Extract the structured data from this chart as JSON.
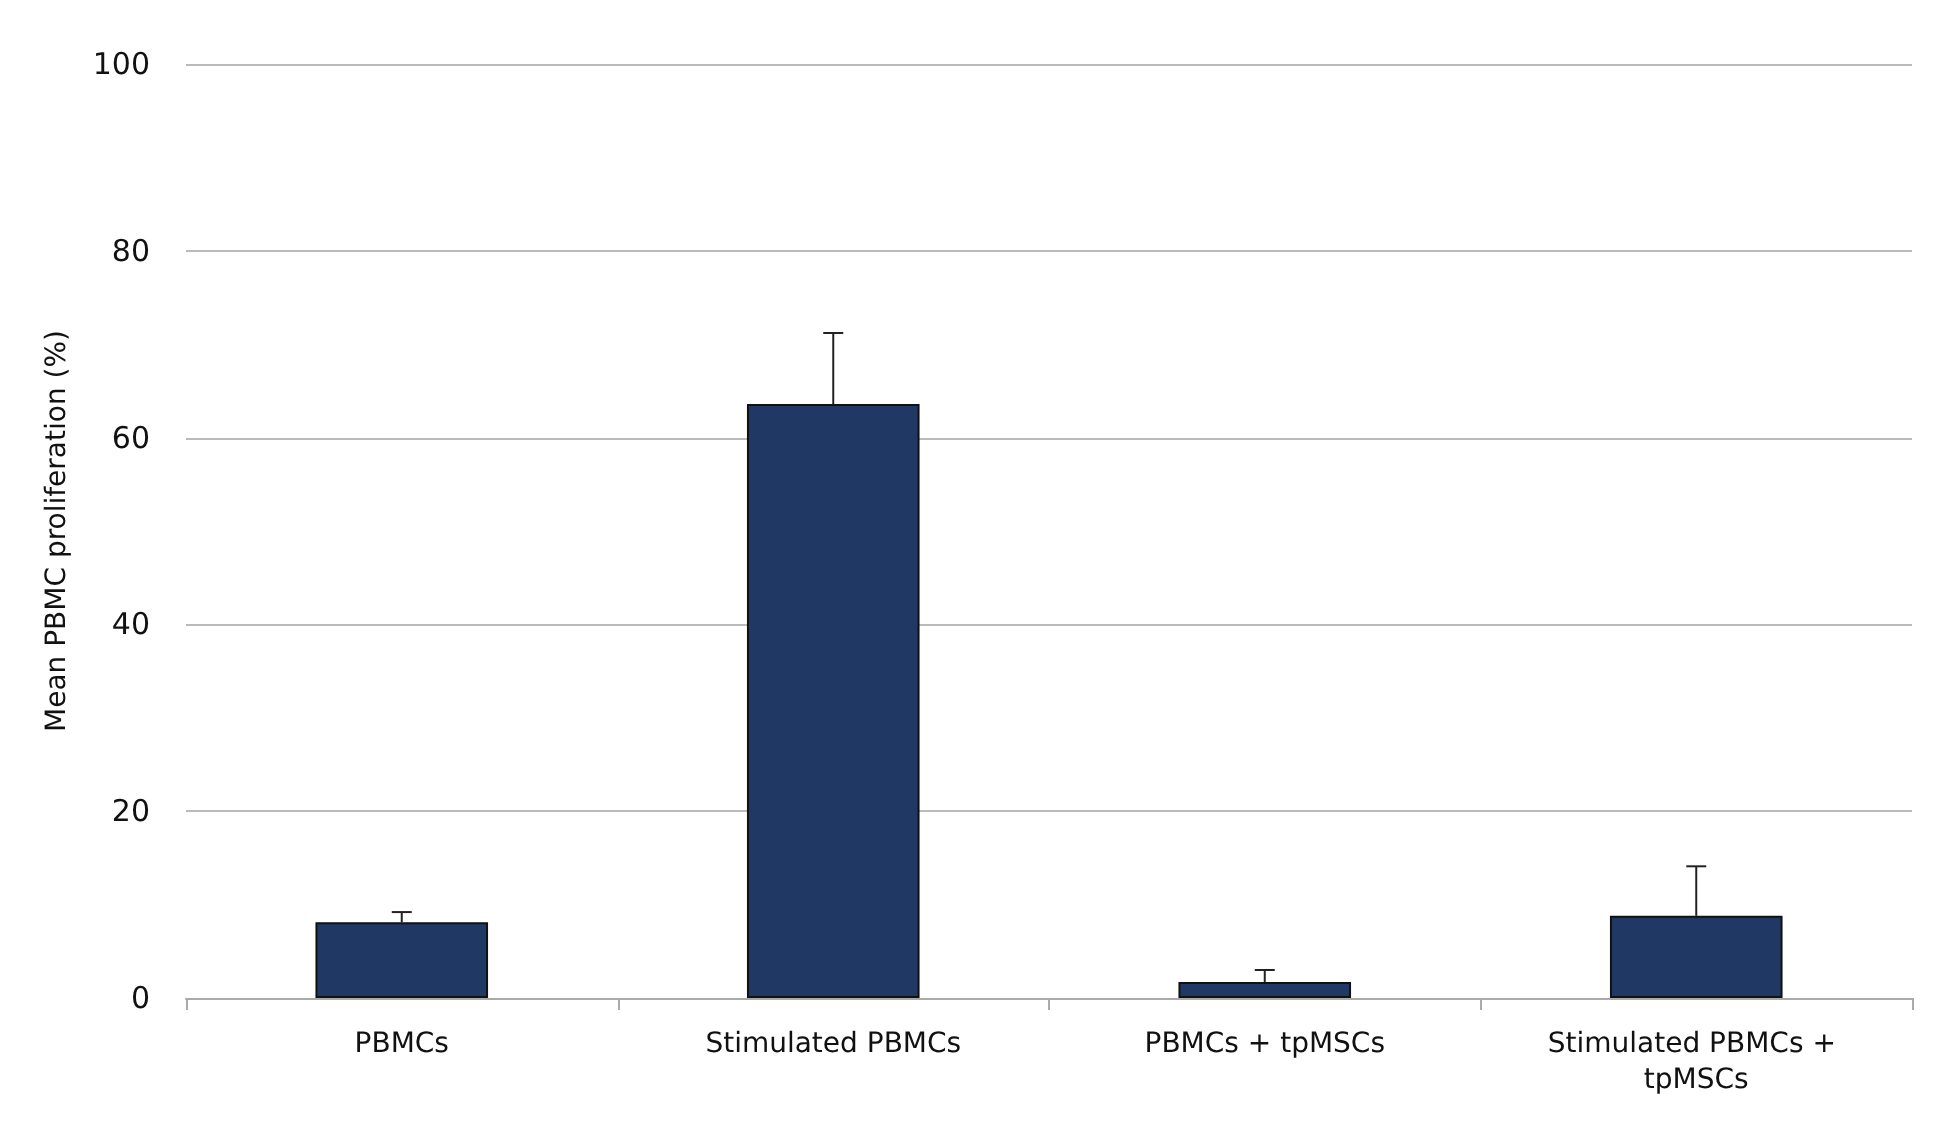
{
  "chart_data": {
    "type": "bar",
    "ylabel": "Mean PBMC proliferation (%)",
    "categories": [
      "PBMCs",
      "Stimulated PBMCs",
      "PBMCs + tpMSCs",
      "Stimulated PBMCs + tpMSCs"
    ],
    "series": [
      {
        "color": "#203864",
        "values": [
          8.1,
          63.6,
          1.7,
          8.8
        ],
        "errors": [
          [
            8.1,
            9.2
          ],
          [
            63.6,
            71.2
          ],
          [
            1.7,
            3.0
          ],
          [
            8.8,
            14.1
          ]
        ]
      }
    ],
    "ylim": [
      0,
      100
    ],
    "yticks": [
      0,
      20,
      40,
      60,
      80,
      100
    ],
    "grid": "y"
  }
}
